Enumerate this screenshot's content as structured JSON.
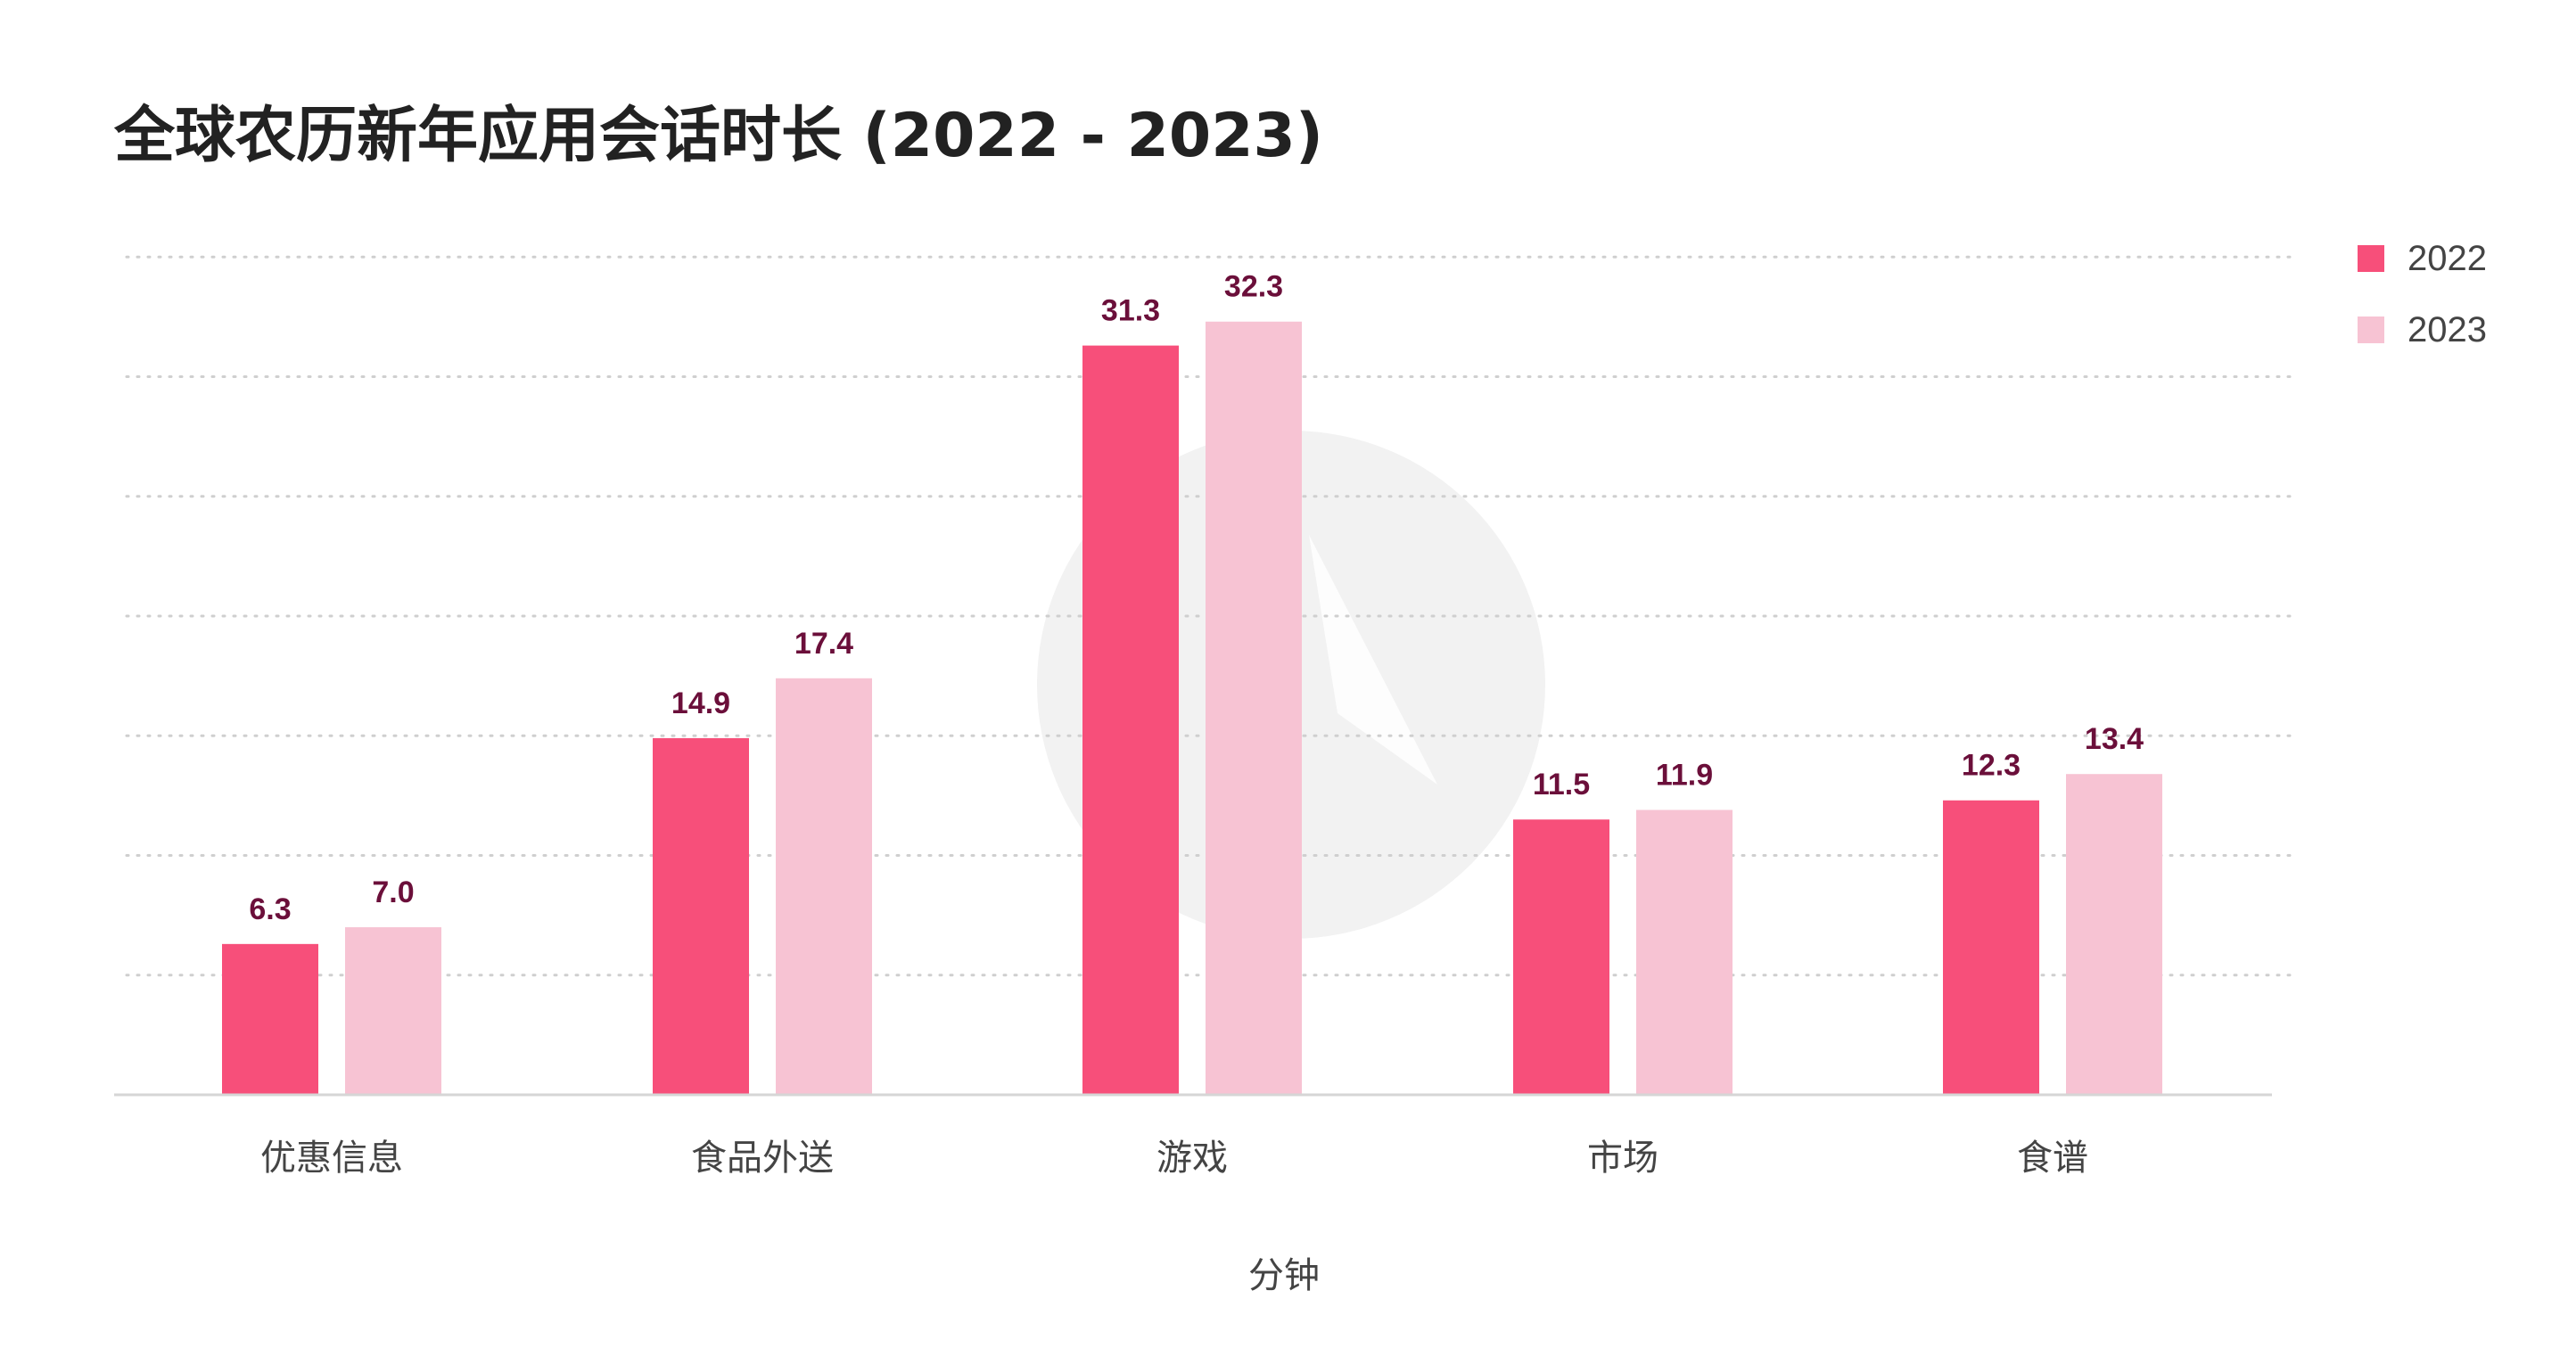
{
  "chart_data": {
    "type": "bar",
    "title": "全球农历新年应用会话时长 (2022 - 2023)",
    "xlabel": "分钟",
    "ylabel": "",
    "categories": [
      "优惠信息",
      "食品外送",
      "游戏",
      "市场",
      "食谱"
    ],
    "series": [
      {
        "name": "2022",
        "values": [
          6.3,
          14.9,
          31.3,
          11.5,
          12.3
        ],
        "color": "#f74f7a"
      },
      {
        "name": "2023",
        "values": [
          7.0,
          17.4,
          32.3,
          11.9,
          13.4
        ],
        "color": "#f7c3d3"
      }
    ],
    "data_labels": {
      "2022": [
        "6.3",
        "14.9",
        "31.3",
        "11.5",
        "12.3"
      ],
      "2023": [
        "7.0",
        "17.4",
        "32.3",
        "11.9",
        "13.4"
      ]
    },
    "ylim": [
      0,
      35
    ],
    "grid": true,
    "legend_position": "top-right"
  },
  "colors": {
    "label_text": "#6b0f3a",
    "grid": "#cfcfcf",
    "axis": "#d6d6d6",
    "watermark": "#f2f2f2"
  }
}
